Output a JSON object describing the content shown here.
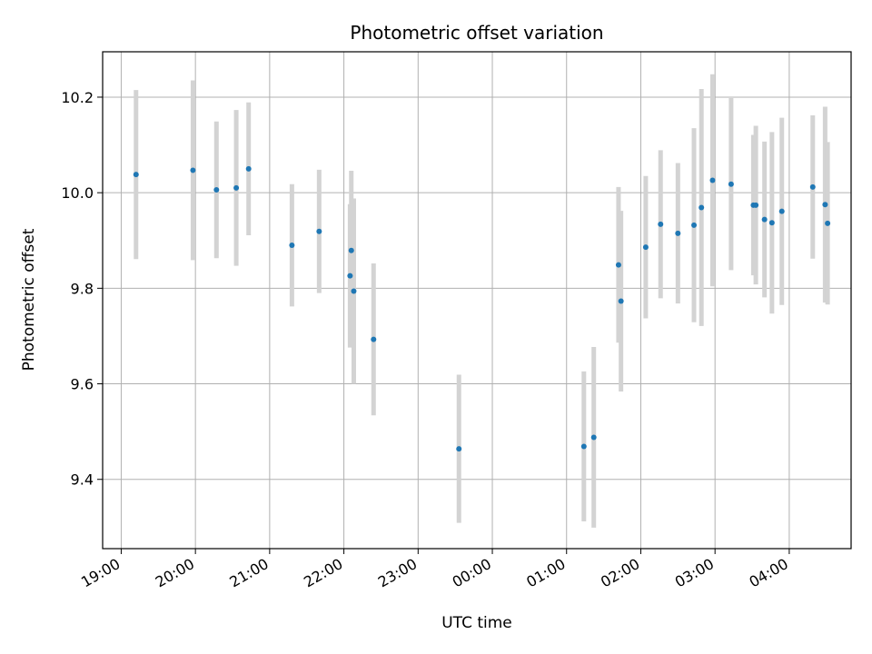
{
  "chart_data": {
    "type": "scatter",
    "title": "Photometric offset variation",
    "xlabel": "UTC time",
    "ylabel": "Photometric offset",
    "grid": true,
    "xlim": [
      "18:45",
      "28:50"
    ],
    "ylim": [
      9.255,
      10.295
    ],
    "x_ticks": [
      "19:00",
      "20:00",
      "21:00",
      "22:00",
      "23:00",
      "00:00",
      "01:00",
      "02:00",
      "03:00",
      "04:00"
    ],
    "y_ticks": [
      "9.4",
      "9.6",
      "9.8",
      "10.0",
      "10.2"
    ],
    "colors": {
      "point": "#1f77b4",
      "errorbar": "#d3d3d3",
      "grid": "#b0b0b0"
    },
    "points": [
      {
        "x": "19:12",
        "y": 10.038,
        "err": 0.177
      },
      {
        "x": "19:58",
        "y": 10.047,
        "err": 0.188
      },
      {
        "x": "20:17",
        "y": 10.006,
        "err": 0.143
      },
      {
        "x": "20:33",
        "y": 10.01,
        "err": 0.163
      },
      {
        "x": "20:43",
        "y": 10.05,
        "err": 0.139
      },
      {
        "x": "21:18",
        "y": 9.89,
        "err": 0.128
      },
      {
        "x": "21:40",
        "y": 9.919,
        "err": 0.129
      },
      {
        "x": "22:05",
        "y": 9.826,
        "err": 0.15
      },
      {
        "x": "22:06",
        "y": 9.879,
        "err": 0.167
      },
      {
        "x": "22:08",
        "y": 9.794,
        "err": 0.194
      },
      {
        "x": "22:24",
        "y": 9.693,
        "err": 0.159
      },
      {
        "x": "23:33",
        "y": 9.464,
        "err": 0.155
      },
      {
        "x": "01:14",
        "y": 9.469,
        "err": 0.157
      },
      {
        "x": "01:22",
        "y": 9.488,
        "err": 0.189
      },
      {
        "x": "01:42",
        "y": 9.849,
        "err": 0.163
      },
      {
        "x": "01:44",
        "y": 9.773,
        "err": 0.189
      },
      {
        "x": "02:04",
        "y": 9.886,
        "err": 0.149
      },
      {
        "x": "02:16",
        "y": 9.934,
        "err": 0.155
      },
      {
        "x": "02:30",
        "y": 9.915,
        "err": 0.147
      },
      {
        "x": "02:43",
        "y": 9.932,
        "err": 0.203
      },
      {
        "x": "02:49",
        "y": 9.969,
        "err": 0.248
      },
      {
        "x": "02:58",
        "y": 10.026,
        "err": 0.222
      },
      {
        "x": "03:13",
        "y": 10.018,
        "err": 0.18
      },
      {
        "x": "03:31",
        "y": 9.974,
        "err": 0.147
      },
      {
        "x": "03:33",
        "y": 9.974,
        "err": 0.166
      },
      {
        "x": "03:40",
        "y": 9.944,
        "err": 0.163
      },
      {
        "x": "03:46",
        "y": 9.937,
        "err": 0.19
      },
      {
        "x": "03:54",
        "y": 9.961,
        "err": 0.196
      },
      {
        "x": "04:19",
        "y": 10.012,
        "err": 0.15
      },
      {
        "x": "04:29",
        "y": 9.975,
        "err": 0.205
      },
      {
        "x": "04:31",
        "y": 9.936,
        "err": 0.17
      }
    ]
  }
}
